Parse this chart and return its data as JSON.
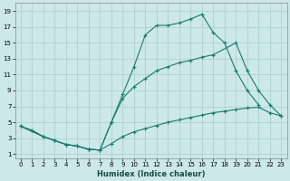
{
  "xlabel": "Humidex (Indice chaleur)",
  "bg_color": "#cce8e8",
  "grid_color": "#aacccc",
  "line_color": "#1a7a6e",
  "xlim": [
    -0.5,
    23.5
  ],
  "ylim": [
    0.5,
    20
  ],
  "xticks": [
    0,
    1,
    2,
    3,
    4,
    5,
    6,
    7,
    8,
    9,
    10,
    11,
    12,
    13,
    14,
    15,
    16,
    17,
    18,
    19,
    20,
    21,
    22,
    23
  ],
  "yticks": [
    1,
    3,
    5,
    7,
    9,
    11,
    13,
    15,
    17,
    19
  ],
  "curve1_x": [
    0,
    1,
    2,
    3,
    4,
    5,
    6,
    7,
    8,
    9,
    10,
    11,
    12,
    13,
    14,
    15,
    16,
    17,
    18,
    19,
    20,
    21
  ],
  "curve1_y": [
    4.5,
    4.0,
    3.2,
    2.7,
    2.2,
    2.0,
    1.6,
    1.5,
    5.0,
    8.5,
    12.0,
    16.0,
    17.2,
    17.2,
    17.5,
    18.0,
    18.6,
    16.3,
    15.0,
    11.5,
    9.0,
    7.2
  ],
  "curve2_x": [
    0,
    2,
    3,
    4,
    5,
    6,
    7,
    8,
    9,
    10,
    11,
    12,
    13,
    14,
    15,
    16,
    17,
    19,
    20,
    21,
    22,
    23
  ],
  "curve2_y": [
    4.5,
    3.2,
    2.7,
    2.2,
    2.0,
    1.6,
    1.5,
    5.0,
    8.0,
    9.5,
    10.5,
    11.5,
    12.0,
    12.5,
    12.8,
    13.2,
    13.5,
    15.0,
    11.5,
    9.0,
    7.2,
    5.8
  ],
  "curve3_x": [
    0,
    2,
    3,
    4,
    5,
    6,
    7,
    8,
    9,
    10,
    11,
    12,
    13,
    14,
    15,
    16,
    17,
    18,
    19,
    20,
    21,
    22,
    23
  ],
  "curve3_y": [
    4.5,
    3.2,
    2.7,
    2.2,
    2.0,
    1.6,
    1.5,
    2.3,
    3.2,
    3.8,
    4.2,
    4.6,
    5.0,
    5.3,
    5.6,
    5.9,
    6.2,
    6.4,
    6.6,
    6.8,
    6.9,
    6.2,
    5.8
  ]
}
